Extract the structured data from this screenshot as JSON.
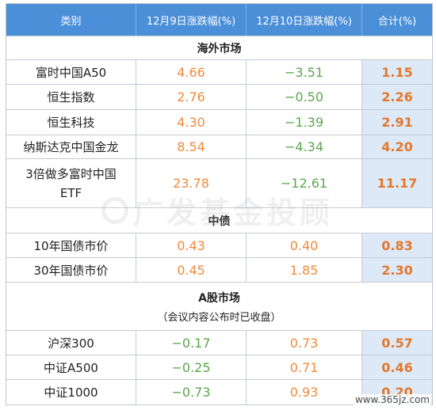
{
  "header": {
    "col1": "类别",
    "col2": "12月9日涨跌幅(%)",
    "col3": "12月10日涨跌幅(%)",
    "col4": "合计(%)"
  },
  "sections": {
    "overseas": {
      "title": "海外市场"
    },
    "bond": {
      "title": "中债"
    },
    "ashare": {
      "title": "A股市场",
      "note": "（会议内容公布时已收盘）"
    }
  },
  "rows": {
    "r0": {
      "name": "富时中国A50",
      "d9": "4.66",
      "d10": "−3.51",
      "total": "1.15"
    },
    "r1": {
      "name": "恒生指数",
      "d9": "2.76",
      "d10": "−0.50",
      "total": "2.26"
    },
    "r2": {
      "name": "恒生科技",
      "d9": "4.30",
      "d10": "−1.39",
      "total": "2.91"
    },
    "r3": {
      "name": "纳斯达克中国金龙",
      "d9": "8.54",
      "d10": "−4.34",
      "total": "4.20"
    },
    "r4": {
      "name_line1": "3倍做多富时中国",
      "name_line2": "ETF",
      "d9": "23.78",
      "d10": "−12.61",
      "total": "11.17"
    },
    "r5": {
      "name": "10年国债市价",
      "d9": "0.43",
      "d10": "0.40",
      "total": "0.83"
    },
    "r6": {
      "name": "30年国债市价",
      "d9": "0.45",
      "d10": "1.85",
      "total": "2.30"
    },
    "r7": {
      "name": "沪深300",
      "d9": "−0.17",
      "d10": "0.73",
      "total": "0.57"
    },
    "r8": {
      "name": "中证A500",
      "d9": "−0.25",
      "d10": "0.71",
      "total": "0.46"
    },
    "r9": {
      "name": "中证1000",
      "d9": "−0.73",
      "d10": "0.93",
      "total": "0.20"
    }
  },
  "watermark": "广发基金投顾",
  "site_mark": "www.365jz.com",
  "colors": {
    "header_bg": "#4b8fd8",
    "up": "#f08a3c",
    "down": "#5aa84a",
    "total_bg": "#dde9f7"
  }
}
